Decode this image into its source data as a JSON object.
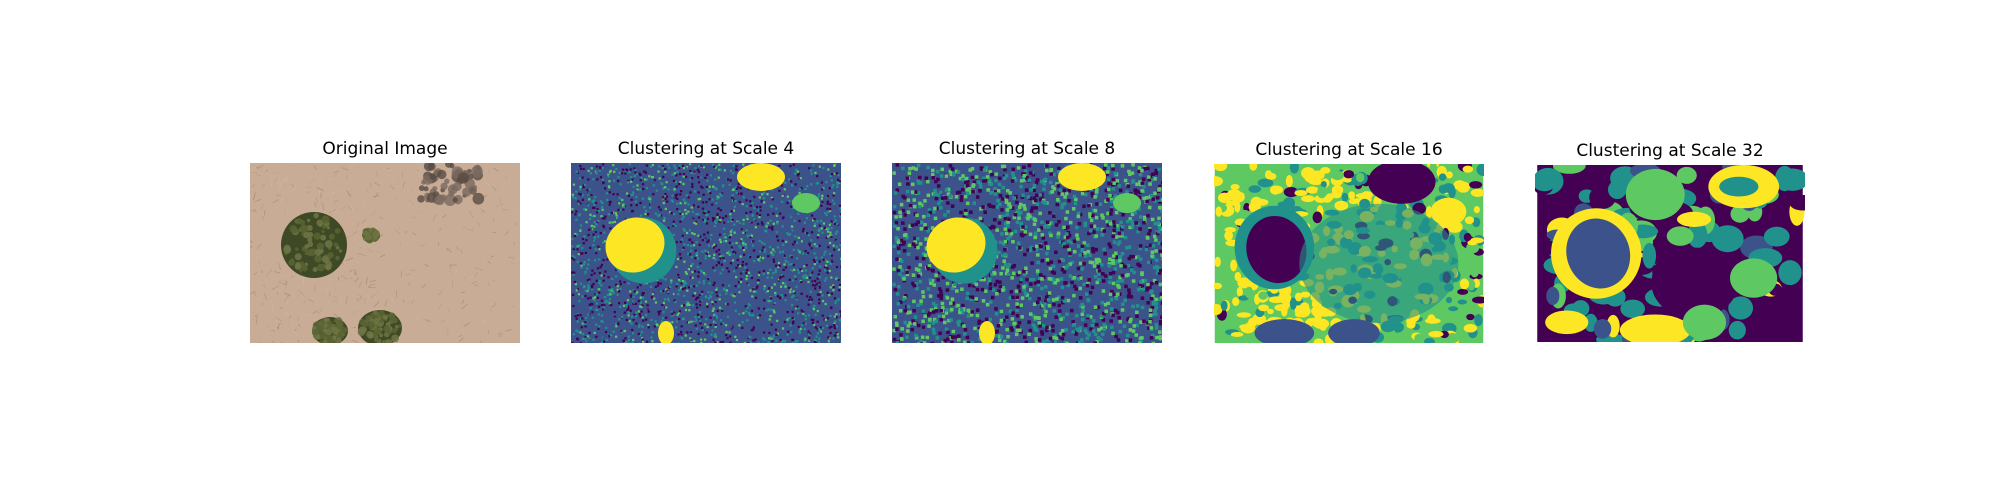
{
  "figure": {
    "panels": [
      {
        "title": "Original Image",
        "kind": "photo"
      },
      {
        "title": "Clustering at Scale 4",
        "kind": "cluster",
        "scale": 4
      },
      {
        "title": "Clustering at Scale 8",
        "kind": "cluster",
        "scale": 8
      },
      {
        "title": "Clustering at Scale 16",
        "kind": "cluster",
        "scale": 16
      },
      {
        "title": "Clustering at Scale 32",
        "kind": "cluster",
        "scale": 32
      }
    ]
  },
  "colors": {
    "cluster_palette": [
      "#440154",
      "#3b528b",
      "#21918c",
      "#5ec962",
      "#fde725"
    ],
    "photo": {
      "ground": "#c9ac95",
      "dry_grass": "#b59a78",
      "shrub": "#596332",
      "shrub_dark": "#3e4a25",
      "dark_brush": "#5a4c44"
    }
  }
}
